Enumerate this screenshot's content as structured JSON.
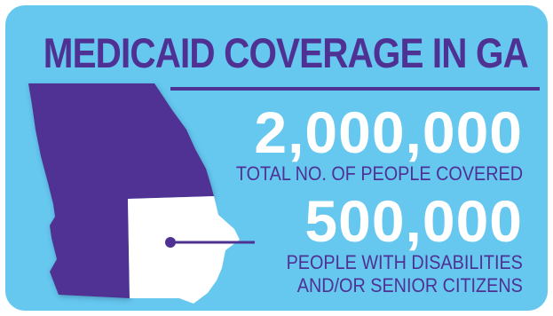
{
  "title": "MEDICAID COVERAGE IN GA",
  "stats": [
    {
      "value": "2,000,000",
      "label_lines": [
        "TOTAL NO. OF PEOPLE COVERED"
      ]
    },
    {
      "value": "500,000",
      "label_lines": [
        "PEOPLE WITH DISABILITIES",
        "AND/OR SENIOR CITIZENS"
      ]
    }
  ],
  "map": {
    "name": "Georgia state map",
    "covered_fraction": 0.25,
    "colors": {
      "total": "#4f3194",
      "subset": "#ffffff"
    }
  },
  "colors": {
    "background": "#66c7ef",
    "accent": "#4f3194",
    "highlight": "#ffffff"
  }
}
